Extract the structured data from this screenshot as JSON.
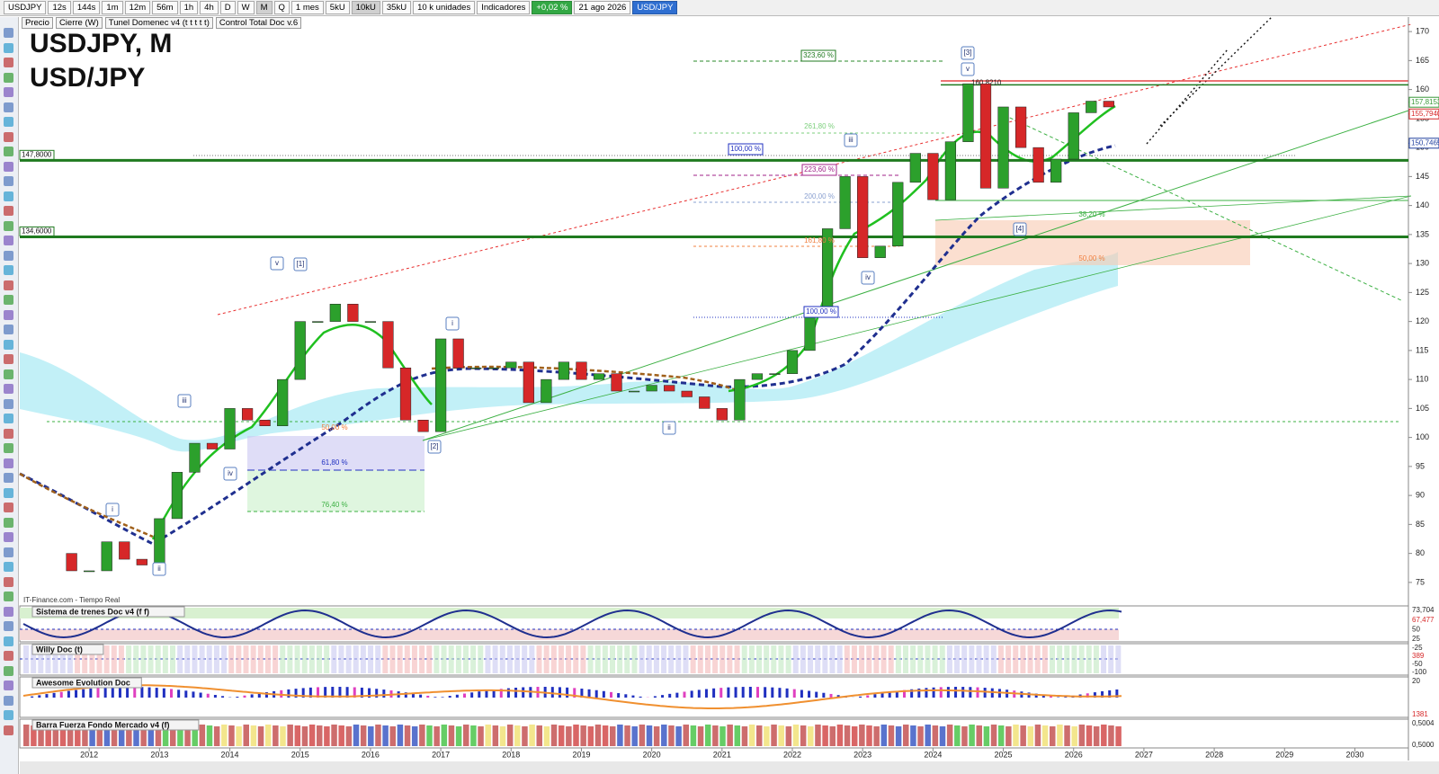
{
  "toolbar": {
    "items": [
      "USDJPY",
      "12s",
      "144s",
      "1m",
      "12m",
      "56m",
      "1h",
      "4h",
      "D",
      "W",
      "M",
      "Q",
      "1 mes",
      "5kU",
      "10kU",
      "35kU",
      "10 k unidades",
      "Indicadores",
      "+0,02 %",
      "21 ago 2026",
      "USD/JPY"
    ]
  },
  "legend": {
    "items": [
      "Precio",
      "Cierre (W)",
      "Tunel Domenec v4 (t t t t t)",
      "Control Total Doc v.6"
    ]
  },
  "chart_data": {
    "type": "candlestick",
    "title": "USDJPY, M",
    "subtitle": "USD/JPY",
    "source": "IT-Finance.com - Tiempo Real",
    "x": [
      2011.5,
      2011.75,
      2012.0,
      2012.25,
      2012.5,
      2012.75,
      2013.0,
      2013.25,
      2013.5,
      2013.75,
      2014.0,
      2014.25,
      2014.5,
      2014.75,
      2015.0,
      2015.25,
      2015.5,
      2015.75,
      2016.0,
      2016.25,
      2016.5,
      2016.75,
      2017.0,
      2017.25,
      2017.5,
      2017.75,
      2018.0,
      2018.25,
      2018.5,
      2018.75,
      2019.0,
      2019.25,
      2019.5,
      2019.75,
      2020.0,
      2020.25,
      2020.5,
      2020.75,
      2021.0,
      2021.25,
      2021.5,
      2021.75,
      2022.0,
      2022.25,
      2022.5,
      2022.75,
      2023.0,
      2023.25,
      2023.5,
      2023.75,
      2024.0,
      2024.25,
      2024.5,
      2024.75,
      2025.0,
      2025.25,
      2025.5,
      2025.75,
      2026.0,
      2026.25,
      2026.5
    ],
    "values": [
      80,
      77,
      77,
      82,
      79,
      78,
      86,
      94,
      99,
      98,
      105,
      103,
      102,
      110,
      120,
      120,
      123,
      120,
      120,
      112,
      103,
      101,
      117,
      112,
      112,
      112,
      113,
      106,
      110,
      113,
      110,
      111,
      108,
      108,
      109,
      108,
      107,
      105,
      103,
      110,
      111,
      111,
      115,
      122,
      136,
      145,
      131,
      133,
      144,
      149,
      141,
      151,
      161,
      143,
      157,
      150,
      144,
      148,
      156,
      158,
      157
    ],
    "up_color": "#2ca02c",
    "down_color": "#d62728",
    "xlim": [
      2011,
      2030.8
    ],
    "xticks": [
      2012,
      2013,
      2014,
      2015,
      2016,
      2017,
      2018,
      2019,
      2020,
      2021,
      2022,
      2023,
      2024,
      2025,
      2026,
      2027,
      2028,
      2029,
      2030
    ],
    "ylim": [
      72.5,
      172.5
    ],
    "yticks": [
      75,
      80,
      85,
      90,
      95,
      100,
      105,
      110,
      115,
      120,
      125,
      130,
      135,
      140,
      145,
      150,
      155,
      160,
      165,
      170
    ],
    "price_labels": [
      {
        "value": 157.8153,
        "label": "157,8153",
        "color": "#3a9a3a"
      },
      {
        "value": 155.794,
        "label": "155,7940",
        "color": "#d62728"
      },
      {
        "value": 150.7465,
        "label": "150,7465",
        "color": "#1f3f9f"
      }
    ],
    "levels": [
      {
        "value": 147.8,
        "label": "147,8000",
        "color": "#1f7a1f"
      },
      {
        "value": 134.6,
        "label": "134,6000",
        "color": "#1f7a1f"
      },
      {
        "value": 160.821,
        "label": "160,8210",
        "color": "#1f7a1f"
      }
    ],
    "fib_labels": [
      "323,60 %",
      "261,80 %",
      "223,60 %",
      "200,00 %",
      "161,80 %",
      "100,00 %",
      "100,00 %",
      "38,20 %",
      "50,00 %",
      "50,00 %",
      "61,80 %",
      "76,40 %"
    ],
    "wave_labels": [
      "v",
      "[1]",
      "i",
      "iii",
      "iv",
      "[2]",
      "ii",
      "iii",
      "iv",
      "[3]",
      "v",
      "[4]",
      "i",
      "ii"
    ]
  },
  "panes": [
    {
      "title": "Sistema de trenes Doc v4 (f f)",
      "axis": [
        "73,704",
        "67,477",
        "50",
        "25"
      ]
    },
    {
      "title": "Willy Doc (t)",
      "axis": [
        "-25",
        "389",
        "-50",
        "-100"
      ]
    },
    {
      "title": "Awesome Evolution Doc",
      "axis": [
        "20",
        "1381"
      ]
    },
    {
      "title": "Barra Fuerza Fondo Mercado v4 (f)",
      "axis": [
        "0,5004",
        "0,5000"
      ]
    }
  ]
}
